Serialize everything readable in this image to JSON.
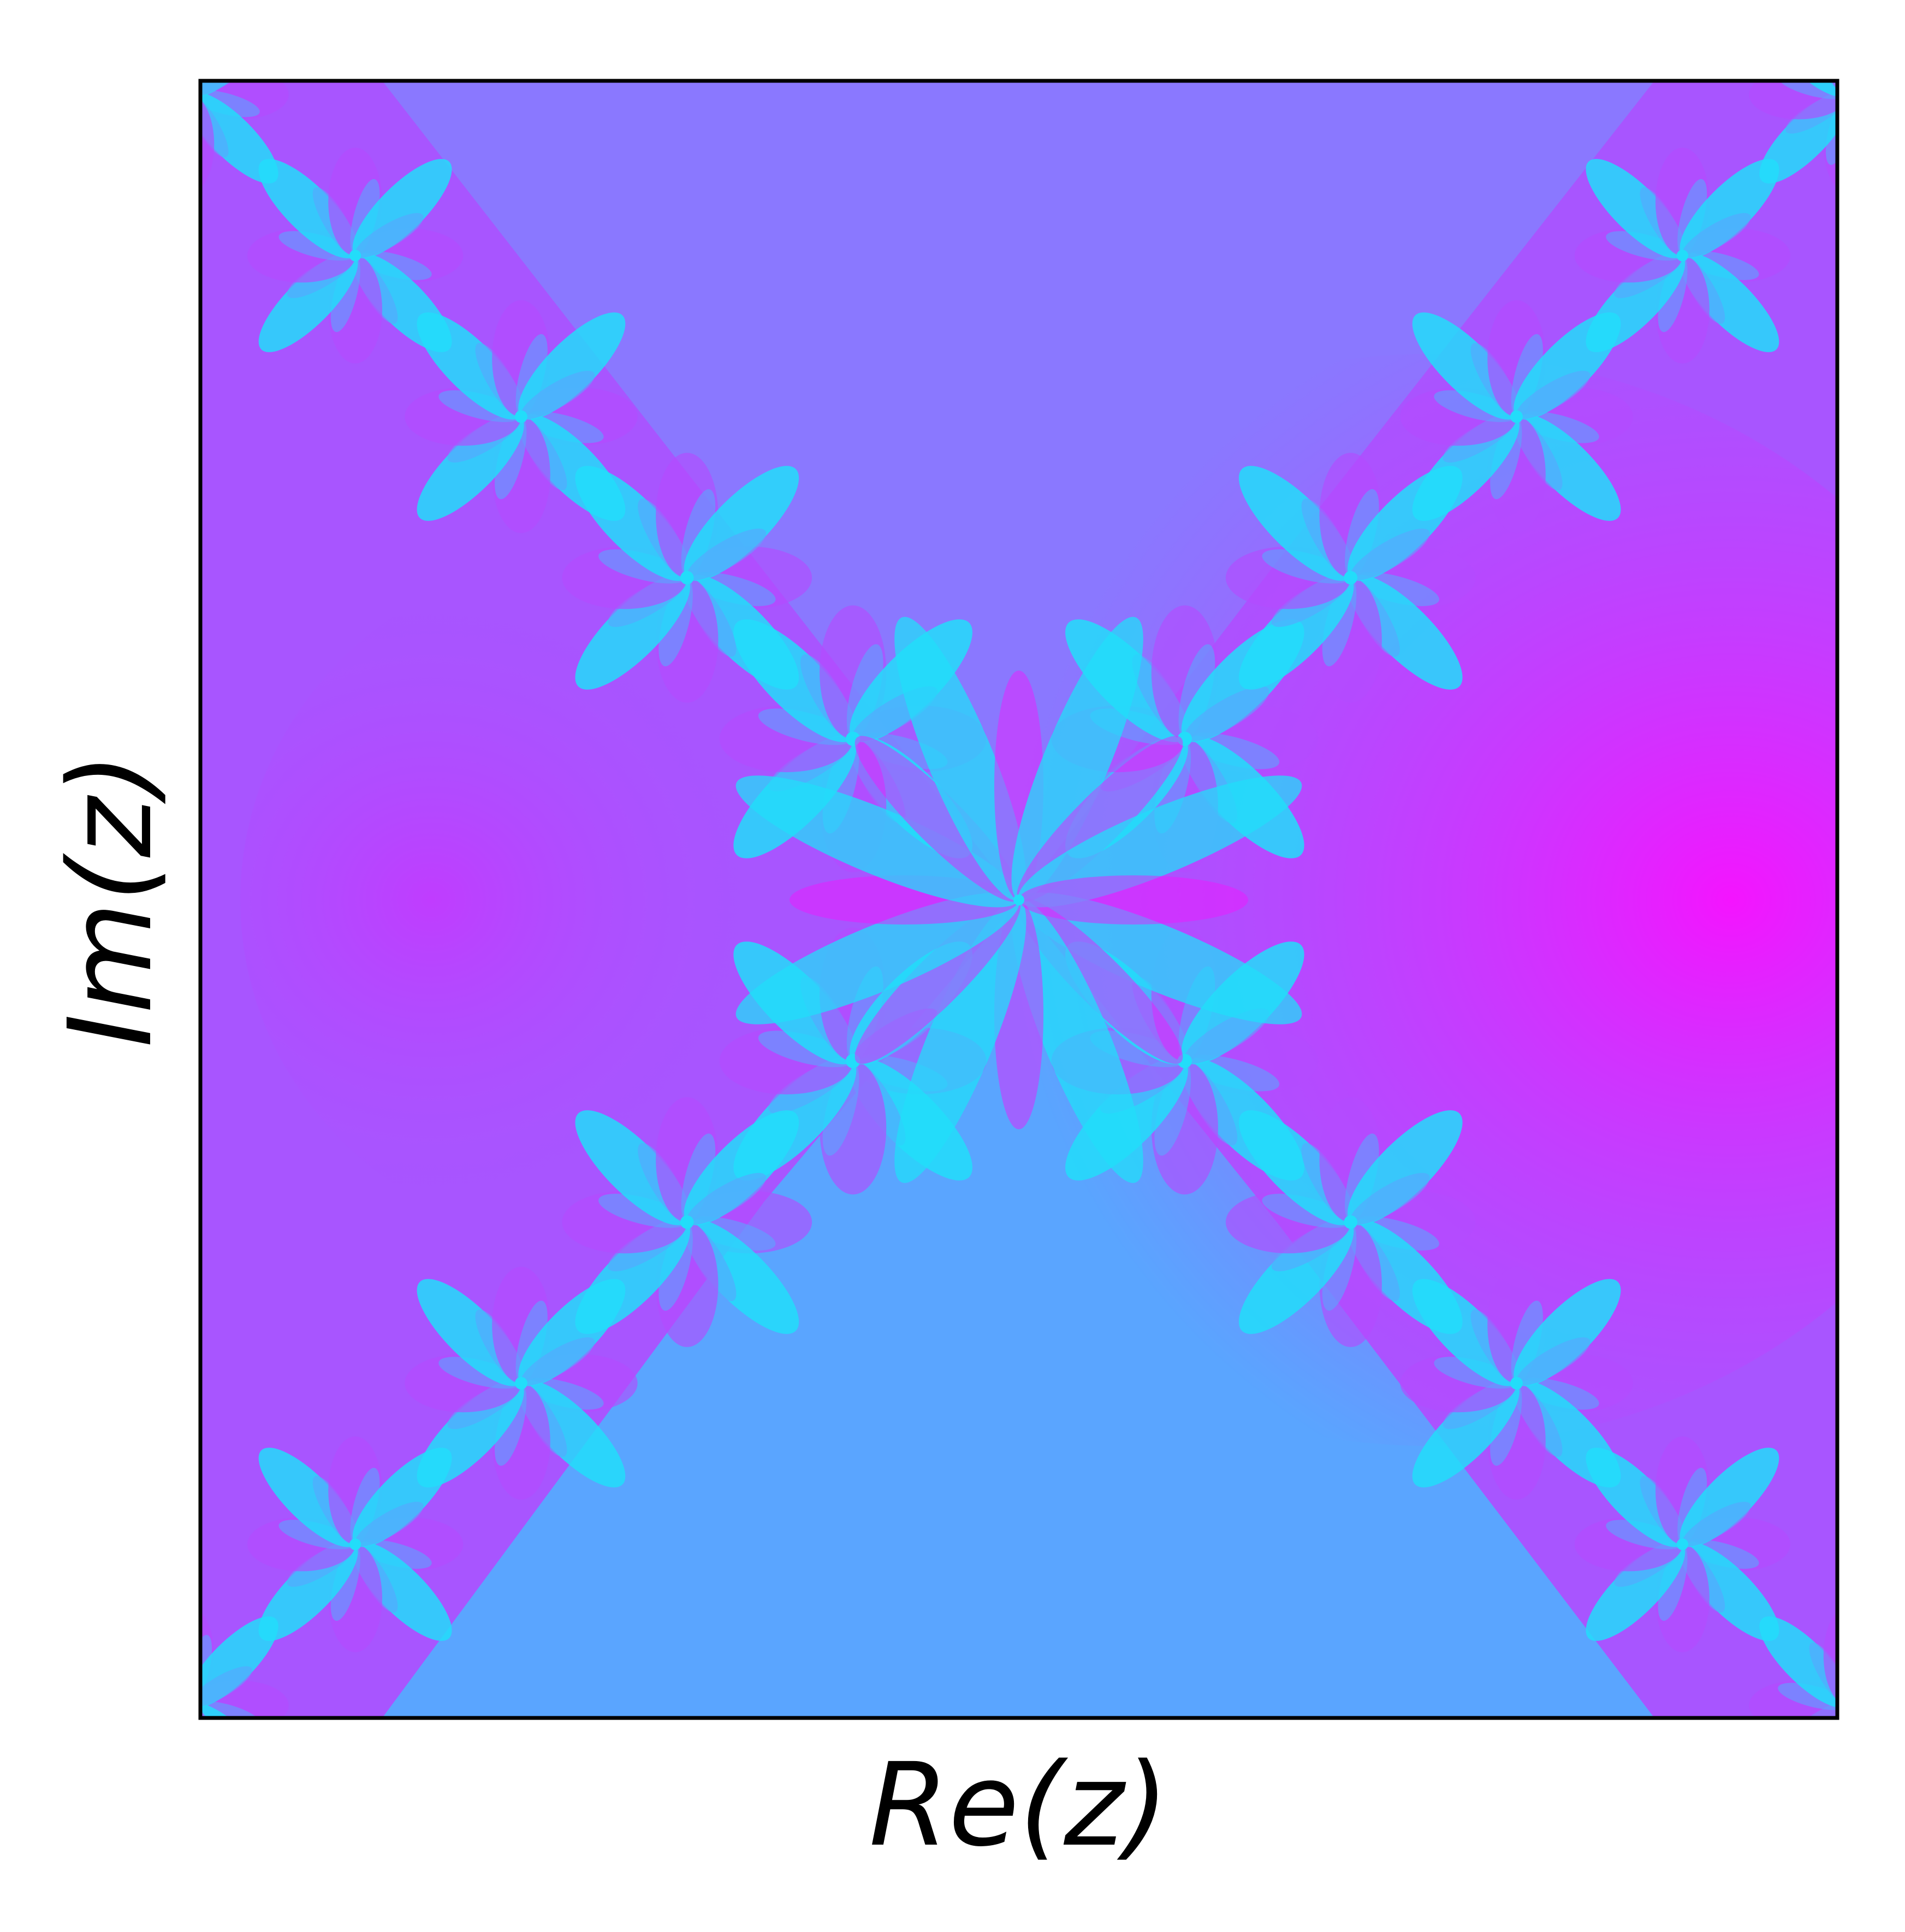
{
  "chart_data": {
    "type": "heatmap",
    "title": "",
    "xlabel": "Re(z)",
    "ylabel": "Im(z)",
    "xticks": [],
    "yticks": [],
    "colormap": "cool",
    "grid": false,
    "legend": "none",
    "colors": {
      "cyan": "#22ddfa",
      "blue": "#5aa5ff",
      "violet": "#8a78ff",
      "purple": "#b44bff",
      "magenta": "#f414ff",
      "frame": "#000000",
      "background": "#ffffff"
    }
  }
}
